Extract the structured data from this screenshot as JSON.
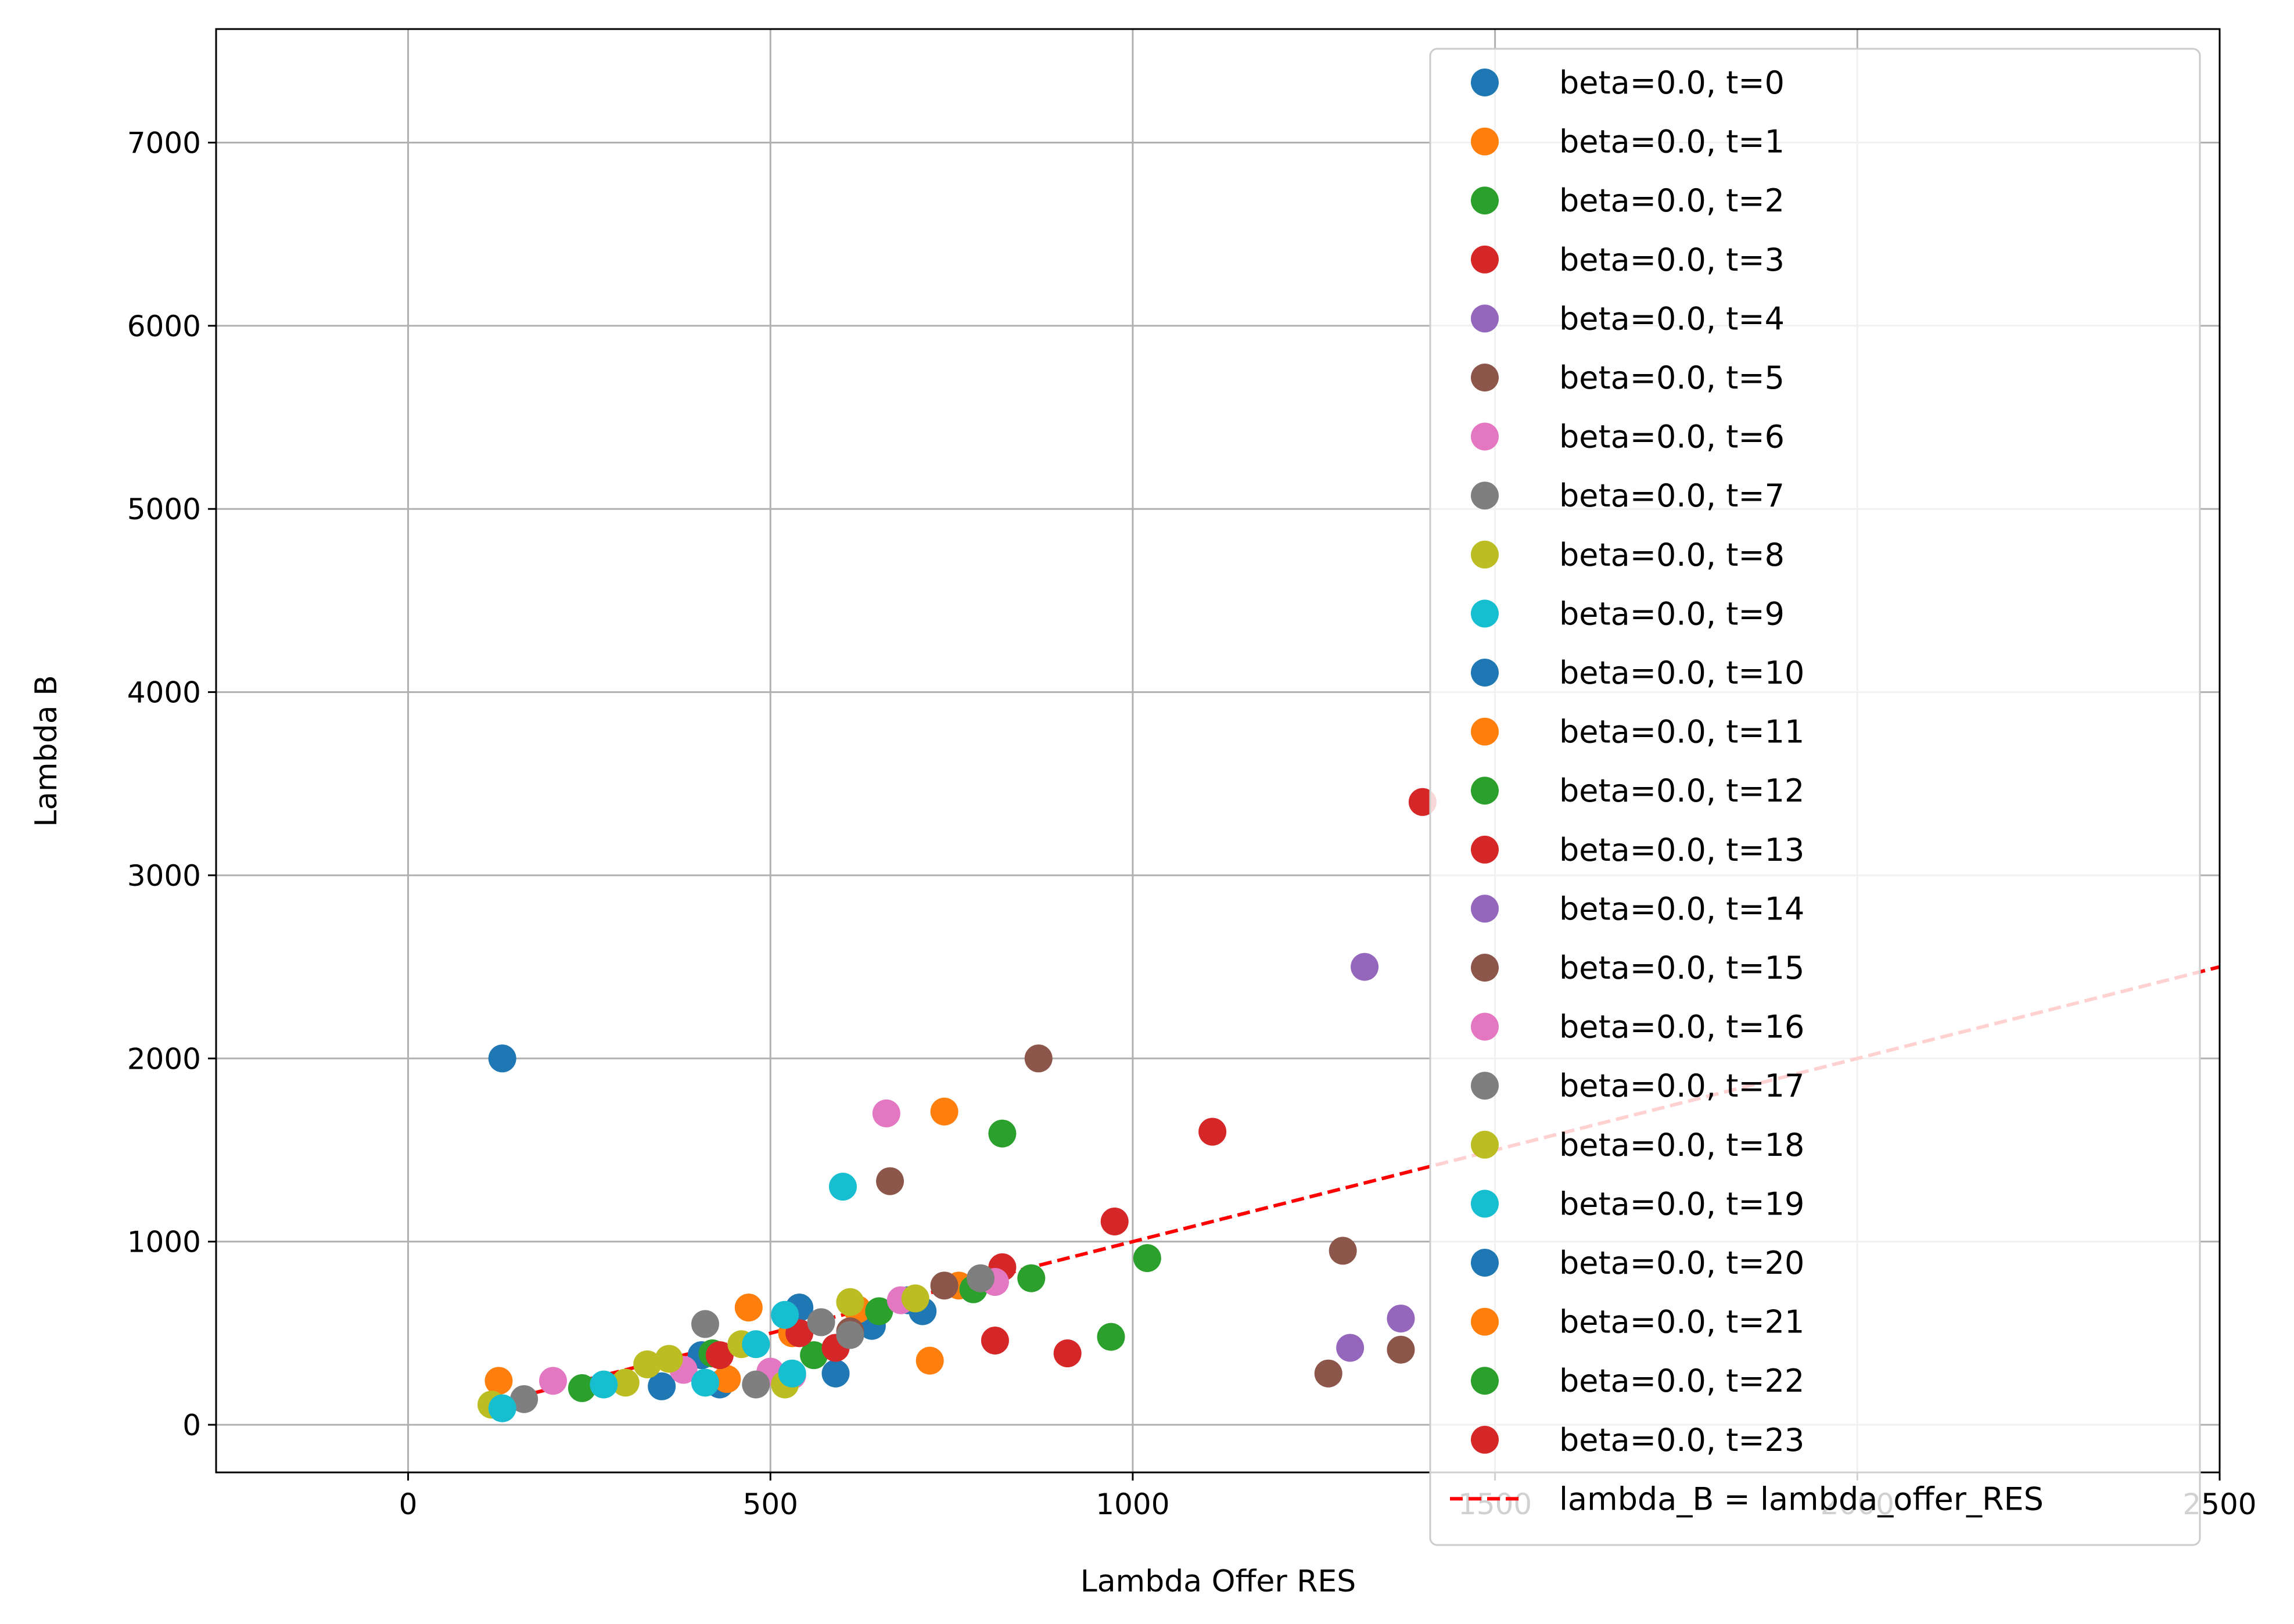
{
  "chart_data": {
    "type": "scatter",
    "title": "",
    "xlabel": "Lambda Offer RES",
    "ylabel": "Lambda B",
    "xlim": [
      -265,
      2500
    ],
    "ylim": [
      -260,
      7620
    ],
    "xticks": [
      0,
      500,
      1000,
      1500,
      2000,
      2500
    ],
    "yticks": [
      0,
      1000,
      2000,
      3000,
      4000,
      5000,
      6000,
      7000
    ],
    "grid": true,
    "legend_position": "top-right",
    "series": [
      {
        "name": "beta=0.0, t=0",
        "color": "#1f77b4",
        "points": [
          [
            130,
            2000
          ],
          [
            350,
            210
          ],
          [
            405,
            380
          ],
          [
            430,
            220
          ],
          [
            540,
            640
          ],
          [
            590,
            280
          ],
          [
            640,
            540
          ],
          [
            690,
            680
          ],
          [
            710,
            620
          ]
        ]
      },
      {
        "name": "beta=0.0, t=1",
        "color": "#ff7f0e",
        "points": [
          [
            125,
            240
          ],
          [
            440,
            250
          ],
          [
            470,
            640
          ],
          [
            530,
            500
          ],
          [
            620,
            630
          ],
          [
            720,
            350
          ],
          [
            740,
            1710
          ],
          [
            760,
            760
          ]
        ]
      },
      {
        "name": "beta=0.0, t=2",
        "color": "#2ca02c",
        "points": [
          [
            240,
            200
          ],
          [
            420,
            390
          ],
          [
            560,
            380
          ],
          [
            650,
            620
          ],
          [
            780,
            740
          ],
          [
            820,
            1590
          ],
          [
            860,
            800
          ],
          [
            970,
            480
          ],
          [
            1020,
            910
          ]
        ]
      },
      {
        "name": "beta=0.0, t=3",
        "color": "#d62728",
        "points": [
          [
            430,
            380
          ],
          [
            540,
            500
          ],
          [
            590,
            420
          ],
          [
            810,
            460
          ],
          [
            820,
            860
          ],
          [
            910,
            390
          ],
          [
            975,
            1110
          ],
          [
            1110,
            1600
          ],
          [
            1400,
            3400
          ]
        ]
      },
      {
        "name": "beta=0.0, t=4",
        "color": "#9467bd",
        "points": [
          [
            1300,
            420
          ],
          [
            1320,
            2500
          ],
          [
            1370,
            580
          ]
        ]
      },
      {
        "name": "beta=0.0, t=5",
        "color": "#8c564b",
        "points": [
          [
            610,
            510
          ],
          [
            665,
            1330
          ],
          [
            740,
            760
          ],
          [
            870,
            2000
          ],
          [
            1270,
            280
          ],
          [
            1290,
            950
          ],
          [
            1370,
            410
          ]
        ]
      },
      {
        "name": "beta=0.0, t=6",
        "color": "#e377c2",
        "points": [
          [
            200,
            240
          ],
          [
            380,
            300
          ],
          [
            500,
            290
          ],
          [
            530,
            270
          ],
          [
            660,
            1700
          ],
          [
            680,
            680
          ],
          [
            810,
            780
          ]
        ]
      },
      {
        "name": "beta=0.0, t=7",
        "color": "#7f7f7f",
        "points": [
          [
            160,
            140
          ],
          [
            410,
            550
          ],
          [
            480,
            220
          ],
          [
            570,
            560
          ],
          [
            610,
            490
          ],
          [
            790,
            800
          ]
        ]
      },
      {
        "name": "beta=0.0, t=8",
        "color": "#bcbd22",
        "points": [
          [
            115,
            110
          ],
          [
            300,
            230
          ],
          [
            330,
            330
          ],
          [
            360,
            360
          ],
          [
            460,
            440
          ],
          [
            520,
            220
          ],
          [
            610,
            670
          ],
          [
            700,
            690
          ]
        ]
      },
      {
        "name": "beta=0.0, t=9",
        "color": "#17becf",
        "points": [
          [
            130,
            90
          ],
          [
            270,
            220
          ],
          [
            410,
            230
          ],
          [
            480,
            440
          ],
          [
            520,
            600
          ],
          [
            530,
            280
          ],
          [
            600,
            1300
          ]
        ]
      }
    ],
    "reference_line": {
      "name": "lambda_B = lambda_offer_RES",
      "color": "#ff0000",
      "style": "dashed",
      "x": [
        100,
        2500
      ],
      "y": [
        100,
        2500
      ]
    },
    "legend_entries": [
      {
        "label": "beta=0.0, t=0",
        "color": "#1f77b4"
      },
      {
        "label": "beta=0.0, t=1",
        "color": "#ff7f0e"
      },
      {
        "label": "beta=0.0, t=2",
        "color": "#2ca02c"
      },
      {
        "label": "beta=0.0, t=3",
        "color": "#d62728"
      },
      {
        "label": "beta=0.0, t=4",
        "color": "#9467bd"
      },
      {
        "label": "beta=0.0, t=5",
        "color": "#8c564b"
      },
      {
        "label": "beta=0.0, t=6",
        "color": "#e377c2"
      },
      {
        "label": "beta=0.0, t=7",
        "color": "#7f7f7f"
      },
      {
        "label": "beta=0.0, t=8",
        "color": "#bcbd22"
      },
      {
        "label": "beta=0.0, t=9",
        "color": "#17becf"
      },
      {
        "label": "beta=0.0, t=10",
        "color": "#1f77b4"
      },
      {
        "label": "beta=0.0, t=11",
        "color": "#ff7f0e"
      },
      {
        "label": "beta=0.0, t=12",
        "color": "#2ca02c"
      },
      {
        "label": "beta=0.0, t=13",
        "color": "#d62728"
      },
      {
        "label": "beta=0.0, t=14",
        "color": "#9467bd"
      },
      {
        "label": "beta=0.0, t=15",
        "color": "#8c564b"
      },
      {
        "label": "beta=0.0, t=16",
        "color": "#e377c2"
      },
      {
        "label": "beta=0.0, t=17",
        "color": "#7f7f7f"
      },
      {
        "label": "beta=0.0, t=18",
        "color": "#bcbd22"
      },
      {
        "label": "beta=0.0, t=19",
        "color": "#17becf"
      },
      {
        "label": "beta=0.0, t=20",
        "color": "#1f77b4"
      },
      {
        "label": "beta=0.0, t=21",
        "color": "#ff7f0e"
      },
      {
        "label": "beta=0.0, t=22",
        "color": "#2ca02c"
      },
      {
        "label": "beta=0.0, t=23",
        "color": "#d62728"
      },
      {
        "label": "lambda_B = lambda_offer_RES",
        "color": "#ff0000",
        "line": true
      }
    ]
  }
}
